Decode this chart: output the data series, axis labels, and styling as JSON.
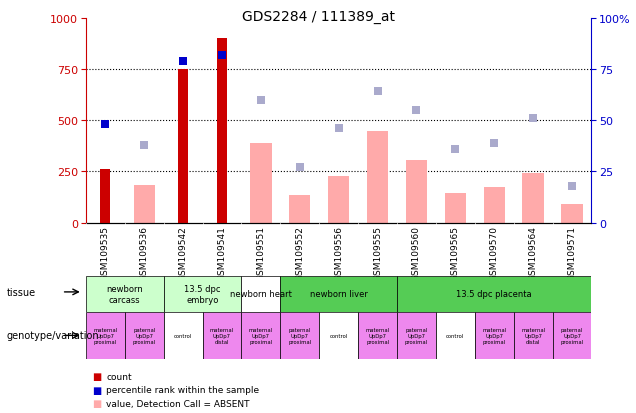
{
  "title": "GDS2284 / 111389_at",
  "samples": [
    "GSM109535",
    "GSM109536",
    "GSM109542",
    "GSM109541",
    "GSM109551",
    "GSM109552",
    "GSM109556",
    "GSM109555",
    "GSM109560",
    "GSM109565",
    "GSM109570",
    "GSM109564",
    "GSM109571"
  ],
  "count_values": [
    260,
    0,
    750,
    900,
    0,
    0,
    0,
    0,
    0,
    0,
    0,
    0,
    0
  ],
  "percentile_values_pct": [
    48,
    0,
    79,
    82,
    0,
    0,
    0,
    0,
    0,
    0,
    0,
    0,
    0
  ],
  "absent_value_bars": [
    0,
    185,
    0,
    0,
    390,
    135,
    225,
    445,
    305,
    145,
    175,
    240,
    90
  ],
  "absent_rank_pct": [
    0,
    38,
    0,
    0,
    60,
    27,
    46,
    64,
    55,
    36,
    39,
    51,
    18
  ],
  "count_color": "#cc0000",
  "percentile_color": "#0000cc",
  "absent_bar_color": "#ffaaaa",
  "absent_dot_color": "#aaaacc",
  "ylim_left": [
    0,
    1000
  ],
  "ylim_right": [
    0,
    100
  ],
  "yticks_left": [
    0,
    250,
    500,
    750,
    1000
  ],
  "yticks_right": [
    0,
    25,
    50,
    75,
    100
  ],
  "tissue_groups": [
    {
      "label": "newborn\ncarcass",
      "start": 0,
      "end": 2,
      "color": "#ccffcc"
    },
    {
      "label": "13.5 dpc\nembryo",
      "start": 2,
      "end": 4,
      "color": "#ccffcc"
    },
    {
      "label": "newborn heart",
      "start": 4,
      "end": 5,
      "color": "#ffffff"
    },
    {
      "label": "newborn liver",
      "start": 5,
      "end": 8,
      "color": "#55cc55"
    },
    {
      "label": "13.5 dpc placenta",
      "start": 8,
      "end": 13,
      "color": "#55cc55"
    }
  ],
  "genotype_labels": [
    "maternal\nUpDp7\nproximal",
    "paternal\nUpDp7\nproximal",
    "control",
    "maternal\nUpDp7\ndistal",
    "maternal\nUpDp7\nproximal",
    "paternal\nUpDp7\nproximal",
    "control",
    "maternal\nUpDp7\nproximal",
    "paternal\nUpDp7\nproximal",
    "control",
    "maternal\nUpDp7\nproximal",
    "maternal\nUpDp7\ndistal",
    "paternal\nUpDp7\nproximal"
  ],
  "genotype_colors": [
    "#ee88ee",
    "#ee88ee",
    "#ffffff",
    "#ee88ee",
    "#ee88ee",
    "#ee88ee",
    "#ffffff",
    "#ee88ee",
    "#ee88ee",
    "#ffffff",
    "#ee88ee",
    "#ee88ee",
    "#ee88ee"
  ],
  "legend_items": [
    {
      "color": "#cc0000",
      "label": "count"
    },
    {
      "color": "#0000cc",
      "label": "percentile rank within the sample"
    },
    {
      "color": "#ffaaaa",
      "label": "value, Detection Call = ABSENT"
    },
    {
      "color": "#aaaacc",
      "label": "rank, Detection Call = ABSENT"
    }
  ]
}
